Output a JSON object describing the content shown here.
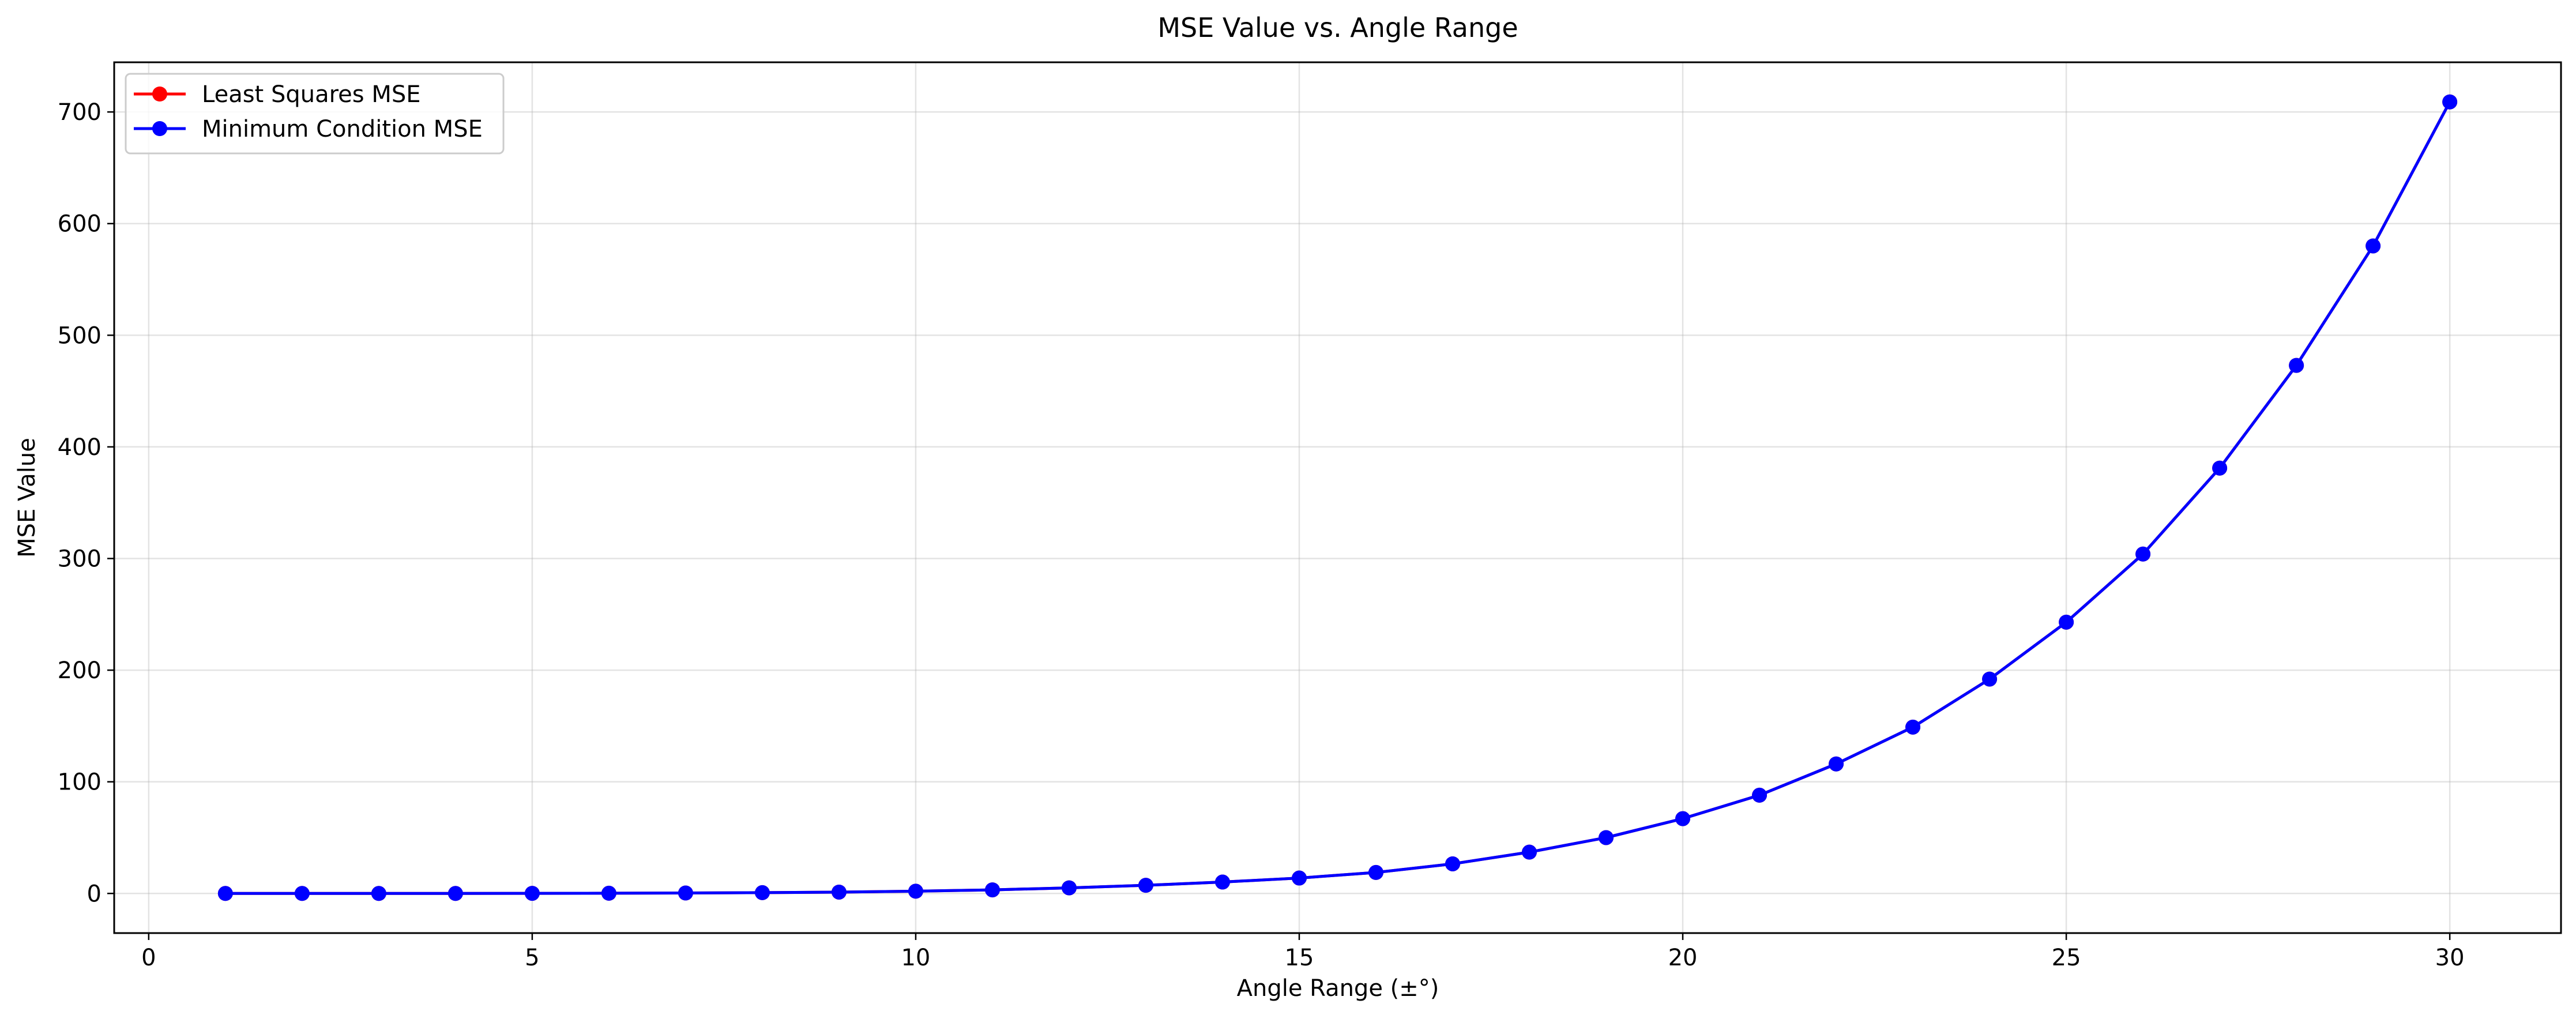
{
  "chart_data": {
    "type": "line",
    "title": "MSE Value vs. Angle Range",
    "xlabel": "Angle Range (±°)",
    "ylabel": "MSE Value",
    "xlim": [
      -0.45,
      31.45
    ],
    "ylim": [
      -35.5,
      744.5
    ],
    "xticks": [
      0,
      5,
      10,
      15,
      20,
      25,
      30
    ],
    "yticks": [
      0,
      100,
      200,
      300,
      400,
      500,
      600,
      700
    ],
    "grid": true,
    "legend_position": "top-left",
    "x": [
      1,
      2,
      3,
      4,
      5,
      6,
      7,
      8,
      9,
      10,
      11,
      12,
      13,
      14,
      15,
      16,
      17,
      18,
      19,
      20,
      21,
      22,
      23,
      24,
      25,
      26,
      27,
      28,
      29,
      30
    ],
    "series": [
      {
        "name": "Least Squares MSE",
        "color": "#ff0000",
        "marker": "circle",
        "values": [
          0.0,
          0.0,
          0.0,
          0.0,
          0.1,
          0.2,
          0.4,
          0.7,
          1.2,
          2.0,
          3.2,
          5.0,
          7.3,
          10.2,
          13.8,
          18.8,
          26.5,
          37.0,
          50.0,
          67.0,
          88.0,
          116.0,
          149.0,
          192.0,
          243.0,
          304.0,
          381.0,
          473.0,
          580.0,
          709.0
        ]
      },
      {
        "name": "Minimum Condition MSE",
        "color": "#0000ff",
        "marker": "circle",
        "values": [
          0.0,
          0.0,
          0.0,
          0.0,
          0.1,
          0.2,
          0.4,
          0.7,
          1.2,
          2.0,
          3.2,
          5.0,
          7.3,
          10.2,
          13.8,
          18.8,
          26.5,
          37.0,
          50.0,
          67.0,
          88.0,
          116.0,
          149.0,
          192.0,
          243.0,
          304.0,
          381.0,
          473.0,
          580.0,
          709.0
        ]
      }
    ]
  }
}
